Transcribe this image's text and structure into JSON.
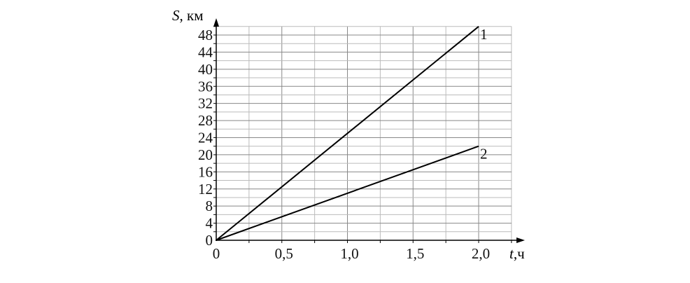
{
  "chart_data": {
    "type": "line",
    "xlabel": "t,ч",
    "ylabel": "S, км",
    "xlabel_italic": "t",
    "xlabel_unit": ",ч",
    "ylabel_italic": "S",
    "ylabel_unit": ", км",
    "xlim": [
      0,
      2.25
    ],
    "ylim": [
      0,
      50
    ],
    "x_ticks": [
      0,
      0.5,
      1.0,
      1.5,
      2.0
    ],
    "x_tick_labels": [
      "0",
      "0,5",
      "1,0",
      "1,5",
      "2,0"
    ],
    "y_ticks": [
      0,
      4,
      8,
      12,
      16,
      20,
      24,
      28,
      32,
      36,
      40,
      44,
      48
    ],
    "y_tick_labels": [
      "0",
      "4",
      "8",
      "12",
      "16",
      "20",
      "24",
      "28",
      "32",
      "36",
      "40",
      "44",
      "48"
    ],
    "grid": true,
    "grid_x_step": 0.25,
    "grid_y_step": 2,
    "series": [
      {
        "name": "1",
        "x": [
          0,
          2.0
        ],
        "y": [
          0,
          50
        ]
      },
      {
        "name": "2",
        "x": [
          0,
          2.0
        ],
        "y": [
          0,
          22
        ]
      }
    ],
    "colors": {
      "line": "#000000",
      "grid": "#aaaaaa"
    }
  }
}
